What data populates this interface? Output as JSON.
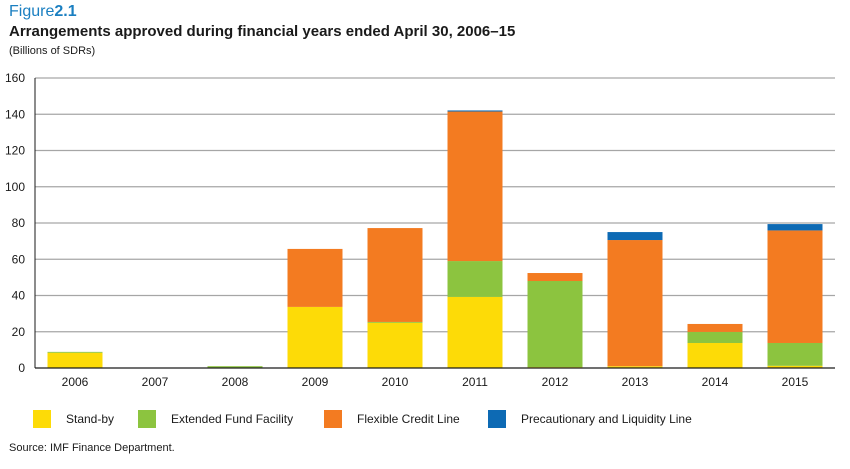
{
  "figure": {
    "label_prefix": "Figure",
    "label_number": "2.1"
  },
  "chart_data": {
    "type": "bar",
    "stacked": true,
    "title": "Arrangements approved during financial years ended April 30, 2006–15",
    "subtitle": "(Billions of SDRs)",
    "xlabel": "",
    "ylabel": "Billions of SDRs",
    "ylim": [
      0,
      160
    ],
    "yticks": [
      0,
      20,
      40,
      60,
      80,
      100,
      120,
      140,
      160
    ],
    "grid": true,
    "legend_position": "bottom",
    "categories": [
      "2006",
      "2007",
      "2008",
      "2009",
      "2010",
      "2011",
      "2012",
      "2013",
      "2014",
      "2015"
    ],
    "series": [
      {
        "name": "Stand-by",
        "color": "#fddb07",
        "values": [
          8.4,
          0,
          0,
          33.7,
          25.0,
          39.2,
          0.5,
          1.0,
          13.8,
          1.2
        ]
      },
      {
        "name": "Extended Fund Facility",
        "color": "#8cc43f",
        "values": [
          0.5,
          0,
          1.0,
          0,
          0.4,
          19.8,
          47.5,
          0,
          6.1,
          12.6
        ]
      },
      {
        "name": "Flexible Credit Line",
        "color": "#f37b21",
        "values": [
          0,
          0,
          0,
          32.0,
          51.8,
          82.5,
          4.4,
          69.6,
          4.4,
          62.1
        ]
      },
      {
        "name": "Precautionary and Liquidity Line",
        "color": "#0d6ab4",
        "values": [
          0,
          0,
          0,
          0,
          0,
          0.6,
          0,
          4.4,
          0,
          3.5
        ]
      }
    ]
  },
  "source": "Source: IMF Finance Department."
}
